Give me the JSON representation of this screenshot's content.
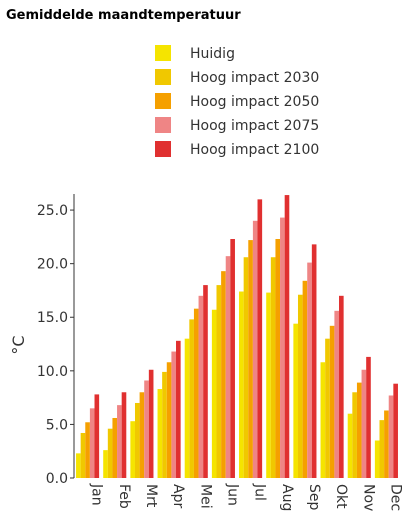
{
  "chart_data": {
    "type": "bar",
    "title": "Gemiddelde maandtemperatuur",
    "y_label": "°C",
    "categories": [
      "Jan",
      "Feb",
      "Mrt",
      "Apr",
      "Mei",
      "Jun",
      "Jul",
      "Aug",
      "Sep",
      "Okt",
      "Nov",
      "Dec"
    ],
    "series": [
      {
        "name": "Huidig",
        "color": "#f5e400",
        "values": [
          2.3,
          2.6,
          5.3,
          8.3,
          13.0,
          15.7,
          17.4,
          17.3,
          14.4,
          10.8,
          6.0,
          3.5
        ]
      },
      {
        "name": "Hoog impact 2030",
        "color": "#f0c800",
        "values": [
          4.2,
          4.6,
          7.0,
          9.9,
          14.8,
          18.0,
          20.6,
          20.6,
          17.1,
          13.0,
          8.0,
          5.4
        ]
      },
      {
        "name": "Hoog impact 2050",
        "color": "#f5a000",
        "values": [
          5.2,
          5.6,
          8.0,
          10.8,
          15.8,
          19.3,
          22.2,
          22.3,
          18.4,
          14.2,
          8.9,
          6.3
        ]
      },
      {
        "name": "Hoog impact 2075",
        "color": "#ef8585",
        "values": [
          6.5,
          6.8,
          9.1,
          11.8,
          17.0,
          20.7,
          24.0,
          24.3,
          20.1,
          15.6,
          10.1,
          7.7
        ]
      },
      {
        "name": "Hoog impact 2100",
        "color": "#e03030",
        "values": [
          7.8,
          8.0,
          10.1,
          12.8,
          18.0,
          22.3,
          26.0,
          26.4,
          21.8,
          17.0,
          11.3,
          8.8
        ]
      }
    ],
    "ylim": [
      0,
      26.5
    ],
    "yticks": [
      {
        "value": 0,
        "label": "0.0"
      },
      {
        "value": 5,
        "label": "5.0"
      },
      {
        "value": 10,
        "label": "10.0"
      },
      {
        "value": 15,
        "label": "15.0"
      },
      {
        "value": 20,
        "label": "20.0"
      },
      {
        "value": 25,
        "label": "25.0"
      }
    ]
  }
}
